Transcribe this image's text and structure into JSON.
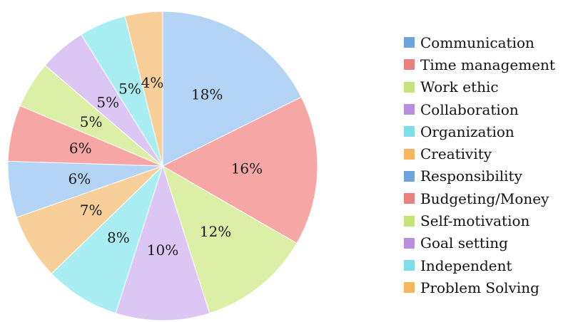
{
  "chart_data": {
    "type": "pie",
    "title": "",
    "categories": [
      "Communication",
      "Time management",
      "Work ethic",
      "Collaboration",
      "Organization",
      "Creativity",
      "Responsibility",
      "Budgeting/Money",
      "Self-motivation",
      "Goal setting",
      "Independent",
      "Problem Solving"
    ],
    "values": [
      18,
      16,
      12,
      10,
      8,
      7,
      6,
      6,
      5,
      5,
      5,
      4
    ],
    "labels": [
      "18%",
      "16%",
      "12%",
      "10%",
      "8%",
      "7%",
      "6%",
      "6%",
      "5%",
      "5%",
      "5%",
      "4%"
    ],
    "legend_position": "right",
    "colors": {
      "fills": [
        "#b3d4f5",
        "#f7a6a6",
        "#dcefa6",
        "#dcc6f4",
        "#a9eef3",
        "#f9cf99",
        "#b3d4f5",
        "#f7a6a6",
        "#dcefa6",
        "#dcc6f4",
        "#a9eef3",
        "#f9cf99"
      ],
      "swatches": [
        "#6fa3dc",
        "#e88080",
        "#c5e37a",
        "#b88fe0",
        "#7ddde8",
        "#f5b660",
        "#6fa3dc",
        "#e88080",
        "#c5e37a",
        "#b88fe0",
        "#7ddde8",
        "#f5b660"
      ]
    }
  }
}
